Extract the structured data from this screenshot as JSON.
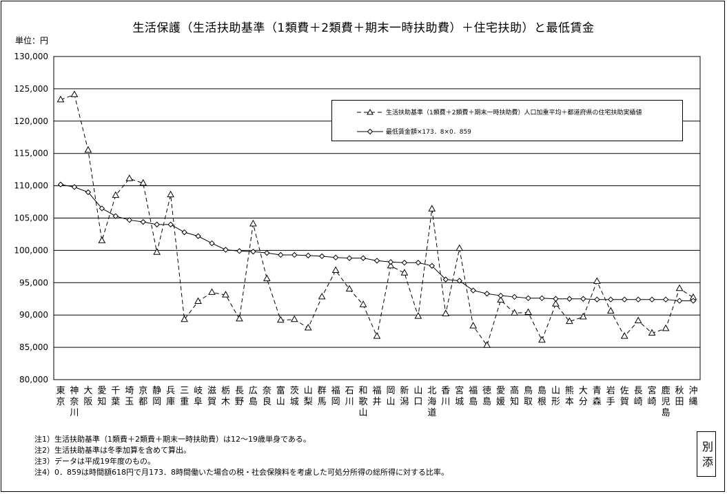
{
  "title": "生活保護（生活扶助基準（1類費＋2類費＋期末一時扶助費）＋住宅扶助）と最低賃金",
  "unit_label": "単位：円",
  "notes": [
    "注1）生活扶助基準（1類費＋2類費＋期末一時扶助費）は12～19歳単身である。",
    "注2）生活扶助基準は冬季加算を含めて算出。",
    "注3）データは平成19年度のもの。",
    "注4）0．859は時間額618円で月173．8時間働いた場合の税・社会保険料を考慮した可処分所得の総所得に対する比率。"
  ],
  "stamp": "別添",
  "chart_data": {
    "type": "line",
    "title": "生活保護（生活扶助基準（1類費＋2類費＋期末一時扶助費）＋住宅扶助）と最低賃金",
    "ylabel": "単位：円",
    "ylim": [
      80000,
      130000
    ],
    "yticks": [
      "80,000",
      "85,000",
      "90,000",
      "95,000",
      "100,000",
      "105,000",
      "110,000",
      "115,000",
      "120,000",
      "125,000",
      "130,000"
    ],
    "grid": true,
    "legend_position": "top-right",
    "categories": [
      "東京",
      "神奈川",
      "大阪",
      "愛知",
      "千葉",
      "埼玉",
      "京都",
      "静岡",
      "兵庫",
      "三重",
      "岐阜",
      "滋賀",
      "栃木",
      "長野",
      "広島",
      "奈良",
      "富山",
      "茨城",
      "山梨",
      "群馬",
      "福岡",
      "石川",
      "和歌山",
      "福井",
      "岡山",
      "新潟",
      "山口",
      "北海道",
      "香川",
      "宮城",
      "福島",
      "徳島",
      "愛媛",
      "高知",
      "鳥取",
      "島根",
      "山形",
      "熊本",
      "大分",
      "青森",
      "岩手",
      "佐賀",
      "長崎",
      "宮崎",
      "鹿児島",
      "秋田",
      "沖縄"
    ],
    "series": [
      {
        "name": "生活扶助基準（1類費＋2類費＋期末一時扶助費）人口加重平均＋都道府県の住宅扶助実績値",
        "style": "dashed",
        "marker": "triangle",
        "color": "#000000",
        "values": [
          123300,
          124100,
          115500,
          101500,
          108500,
          111100,
          110400,
          99700,
          108600,
          89300,
          92100,
          93500,
          93100,
          89400,
          104100,
          95600,
          89200,
          89300,
          88000,
          92800,
          96900,
          94000,
          91600,
          86700,
          97600,
          96500,
          89800,
          106400,
          90200,
          100300,
          88300,
          85300,
          92300,
          90300,
          90400,
          86100,
          91700,
          89000,
          89700,
          95200,
          90600,
          86700,
          89100,
          87200,
          87900,
          94100,
          92700
        ]
      },
      {
        "name": "最低賃金額×173．8×0．859",
        "style": "solid",
        "marker": "diamond",
        "color": "#000000",
        "values": [
          110200,
          109800,
          109000,
          106500,
          105300,
          104700,
          104400,
          104000,
          104000,
          102800,
          102200,
          101100,
          100100,
          99900,
          99800,
          99600,
          99300,
          99300,
          99200,
          99100,
          98900,
          98800,
          98800,
          98400,
          98200,
          98100,
          98100,
          97600,
          95500,
          95300,
          93800,
          93300,
          93000,
          92800,
          92600,
          92600,
          92500,
          92500,
          92500,
          92400,
          92400,
          92400,
          92400,
          92400,
          92400,
          92200,
          92200
        ]
      }
    ]
  }
}
